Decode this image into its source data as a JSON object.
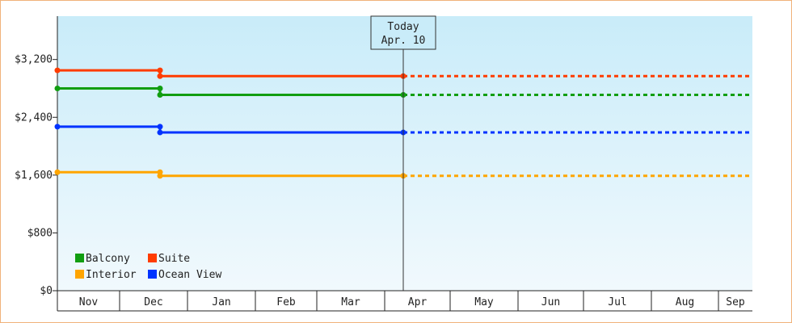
{
  "chart_data": {
    "type": "line",
    "y_axis": {
      "ticks": [
        "$0",
        "$800",
        "$1,600",
        "$2,400",
        "$3,200"
      ],
      "tick_values": [
        0,
        800,
        1600,
        2400,
        3200
      ],
      "ylim": [
        0,
        3800
      ]
    },
    "x_axis": {
      "categories": [
        "Nov",
        "Dec",
        "Jan",
        "Feb",
        "Mar",
        "Apr",
        "May",
        "Jun",
        "Jul",
        "Aug",
        "Sep"
      ]
    },
    "grid": false,
    "today_marker": {
      "label": "Today",
      "date": "Apr. 10"
    },
    "legend": {
      "placement": "bottom-left",
      "entries": [
        {
          "name": "Balcony",
          "color": "#119e11"
        },
        {
          "name": "Suite",
          "color": "#ff3c00"
        },
        {
          "name": "Interior",
          "color": "#ffa500"
        },
        {
          "name": "Ocean View",
          "color": "#0033ff"
        }
      ]
    },
    "series": [
      {
        "name": "Suite",
        "color": "#ff3c00",
        "history": [
          {
            "date": "Nov 1",
            "value": 3050
          },
          {
            "date": "Dec 1",
            "value": 3050
          },
          {
            "date": "Dec 1",
            "value": 2970
          },
          {
            "date": "Apr 10",
            "value": 2970
          }
        ],
        "projection": [
          {
            "date": "Apr 10",
            "value": 2970
          },
          {
            "date": "Sep",
            "value": 2970
          }
        ]
      },
      {
        "name": "Balcony",
        "color": "#119e11",
        "history": [
          {
            "date": "Nov 1",
            "value": 2800
          },
          {
            "date": "Dec 1",
            "value": 2800
          },
          {
            "date": "Dec 1",
            "value": 2710
          },
          {
            "date": "Apr 10",
            "value": 2710
          }
        ],
        "projection": [
          {
            "date": "Apr 10",
            "value": 2710
          },
          {
            "date": "Sep",
            "value": 2710
          }
        ]
      },
      {
        "name": "Ocean View",
        "color": "#0033ff",
        "history": [
          {
            "date": "Nov 1",
            "value": 2270
          },
          {
            "date": "Dec 1",
            "value": 2270
          },
          {
            "date": "Dec 1",
            "value": 2190
          },
          {
            "date": "Apr 10",
            "value": 2190
          }
        ],
        "projection": [
          {
            "date": "Apr 10",
            "value": 2190
          },
          {
            "date": "Sep",
            "value": 2190
          }
        ]
      },
      {
        "name": "Interior",
        "color": "#ffa500",
        "history": [
          {
            "date": "Nov 1",
            "value": 1640
          },
          {
            "date": "Dec 1",
            "value": 1640
          },
          {
            "date": "Dec 1",
            "value": 1590
          },
          {
            "date": "Apr 10",
            "value": 1590
          }
        ],
        "projection": [
          {
            "date": "Apr 10",
            "value": 1590
          },
          {
            "date": "Sep",
            "value": 1590
          }
        ]
      }
    ]
  }
}
